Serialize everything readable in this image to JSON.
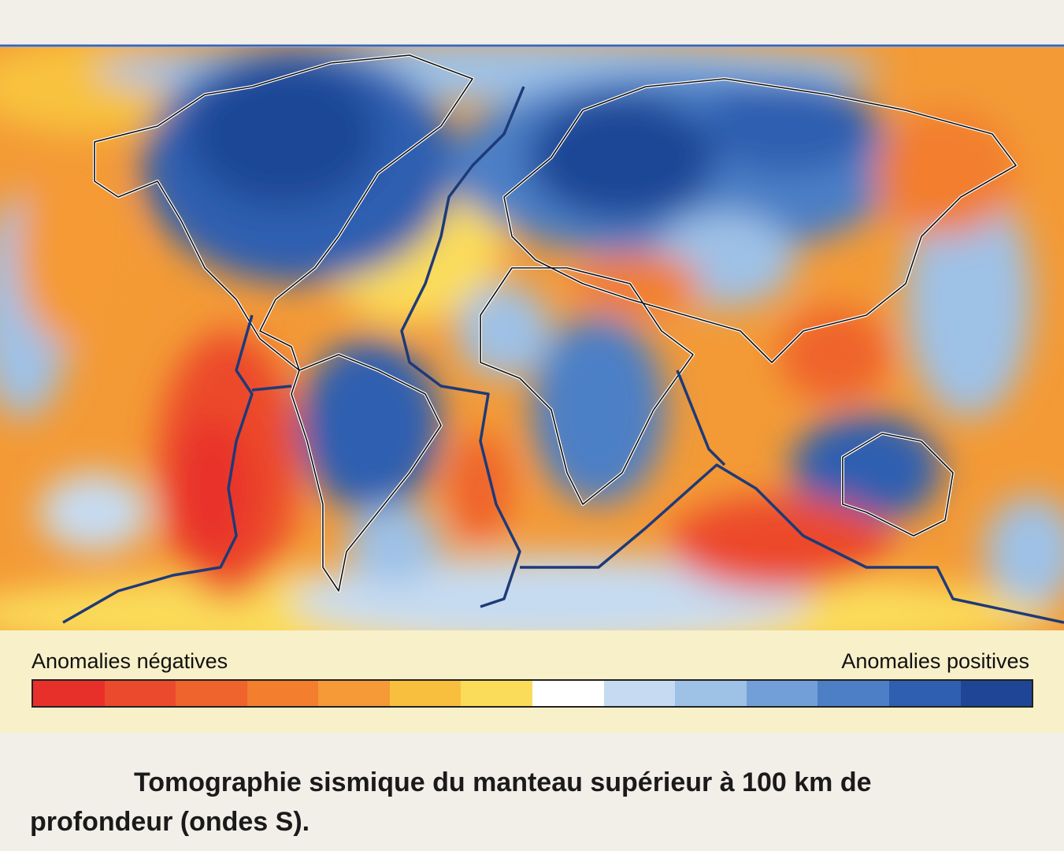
{
  "legend": {
    "left_label": "Anomalies négatives",
    "right_label": "Anomalies positives",
    "colors": [
      "#e8302a",
      "#ec4a2c",
      "#ef632c",
      "#f27e2e",
      "#f59a36",
      "#f8bf3e",
      "#fbdc5a",
      "#ffffff",
      "#c6dbf1",
      "#9ec1e6",
      "#739fd8",
      "#4c7fc6",
      "#2f5fb0",
      "#1f4696"
    ]
  },
  "caption": "Tomographie sismique du manteau supérieur à 100 km de profondeur (ondes S)."
}
